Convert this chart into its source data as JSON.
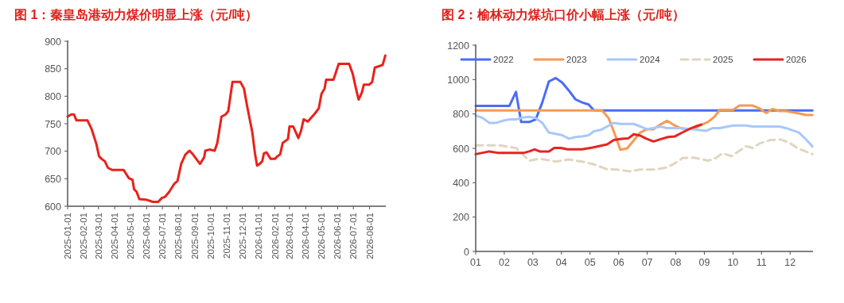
{
  "chart_data": [
    {
      "type": "line",
      "title": "图 1：秦皇岛港动力煤价明显上涨（元/吨）",
      "xlim": [
        "2025-01-01",
        "2026-09-01"
      ],
      "ylim": [
        600,
        900
      ],
      "yticks": [
        600,
        650,
        700,
        750,
        800,
        850,
        900
      ],
      "xticks": [
        "2025-01-01",
        "2025-02-01",
        "2025-03-01",
        "2025-04-01",
        "2025-05-01",
        "2025-06-01",
        "2025-07-01",
        "2025-08-01",
        "2025-09-01",
        "2025-10-01",
        "2025-11-01",
        "2025-12-01",
        "2026-01-01",
        "2026-02-01",
        "2026-03-01",
        "2026-04-01",
        "2026-05-01",
        "2026-06-01",
        "2026-07-01",
        "2026-08-01"
      ],
      "grid": false,
      "legend": false,
      "marker": "none",
      "series": [
        {
          "color": "#e8221b",
          "x": [
            "2025-01-01",
            "2025-01-08",
            "2025-01-13",
            "2025-01-18",
            "2025-02-08",
            "2025-02-16",
            "2025-02-25",
            "2025-03-02",
            "2025-03-07",
            "2025-03-13",
            "2025-03-19",
            "2025-03-27",
            "2025-04-18",
            "2025-04-28",
            "2025-05-05",
            "2025-05-08",
            "2025-05-13",
            "2025-05-18",
            "2025-05-31",
            "2025-06-13",
            "2025-06-23",
            "2025-06-30",
            "2025-07-06",
            "2025-07-14",
            "2025-07-24",
            "2025-07-30",
            "2025-08-06",
            "2025-08-14",
            "2025-08-22",
            "2025-08-27",
            "2025-09-11",
            "2025-09-19",
            "2025-09-21",
            "2025-09-29",
            "2025-10-09",
            "2025-10-14",
            "2025-10-22",
            "2025-10-30",
            "2025-11-04",
            "2025-11-12",
            "2025-11-27",
            "2025-12-04",
            "2025-12-10",
            "2025-12-20",
            "2025-12-25",
            "2025-12-29",
            "2026-01-03",
            "2026-01-08",
            "2026-01-11",
            "2026-01-16",
            "2026-01-24",
            "2026-02-01",
            "2026-02-06",
            "2026-02-11",
            "2026-02-16",
            "2026-02-26",
            "2026-03-01",
            "2026-03-08",
            "2026-03-18",
            "2026-03-23",
            "2026-03-28",
            "2026-04-05",
            "2026-04-18",
            "2026-04-26",
            "2026-05-01",
            "2026-05-07",
            "2026-05-10",
            "2026-05-24",
            "2026-06-03",
            "2026-06-23",
            "2026-06-30",
            "2026-07-06",
            "2026-07-11",
            "2026-07-17",
            "2026-07-21",
            "2026-07-31",
            "2026-08-06",
            "2026-08-11",
            "2026-08-26",
            "2026-08-31"
          ],
          "values": [
            763,
            767,
            767,
            756,
            756,
            740,
            713,
            691,
            686,
            682,
            670,
            666,
            666,
            651,
            648,
            631,
            626,
            613,
            612,
            608,
            608,
            615,
            617,
            626,
            641,
            646,
            677,
            694,
            701,
            696,
            677,
            689,
            701,
            703,
            701,
            715,
            763,
            767,
            773,
            826,
            826,
            814,
            782,
            734,
            696,
            674,
            677,
            682,
            696,
            698,
            686,
            686,
            691,
            694,
            715,
            722,
            745,
            745,
            724,
            737,
            758,
            754,
            768,
            778,
            804,
            814,
            830,
            830,
            859,
            859,
            840,
            814,
            794,
            806,
            821,
            821,
            826,
            852,
            857,
            874
          ]
        }
      ]
    },
    {
      "type": "line",
      "title": "图 2：榆林动力煤坑口价小幅上涨（元/吨）",
      "xlim": [
        1,
        12.8
      ],
      "ylim": [
        0,
        1200
      ],
      "yticks": [
        0,
        200,
        400,
        600,
        800,
        1000,
        1200
      ],
      "xticks": [
        {
          "value": 1,
          "label": "01"
        },
        {
          "value": 2,
          "label": "02"
        },
        {
          "value": 3,
          "label": "03"
        },
        {
          "value": 4,
          "label": "04"
        },
        {
          "value": 5,
          "label": "05"
        },
        {
          "value": 6,
          "label": "06"
        },
        {
          "value": 7,
          "label": "07"
        },
        {
          "value": 8,
          "label": "08"
        },
        {
          "value": 9,
          "label": "09"
        },
        {
          "value": 10,
          "label": "10"
        },
        {
          "value": 11,
          "label": "11"
        },
        {
          "value": 12,
          "label": "12"
        }
      ],
      "grid": false,
      "legend": "top",
      "marker": "none",
      "series": [
        {
          "name": "2022",
          "color": "#4a6cf7",
          "x": [
            1,
            2.18,
            2.41,
            2.59,
            2.87,
            3.1,
            3.33,
            3.56,
            3.8,
            4.03,
            4.26,
            4.49,
            4.72,
            4.95,
            5.14,
            12.78
          ],
          "values": [
            847,
            847,
            928,
            753,
            753,
            768,
            867,
            989,
            1009,
            982,
            936,
            885,
            867,
            855,
            820,
            820
          ]
        },
        {
          "name": "2023",
          "color": "#f79a52",
          "x": [
            1,
            5.42,
            5.65,
            5.88,
            6.06,
            6.3,
            6.53,
            6.76,
            6.99,
            7.22,
            7.45,
            7.69,
            7.92,
            8.15,
            8.38,
            8.61,
            8.89,
            9.12,
            9.35,
            9.54,
            10,
            10.23,
            10.69,
            10.93,
            11.16,
            11.39,
            11.62,
            11.85,
            12.31,
            12.55,
            12.78
          ],
          "values": [
            820,
            820,
            776,
            676,
            592,
            600,
            646,
            692,
            711,
            711,
            737,
            760,
            737,
            718,
            711,
            714,
            737,
            753,
            783,
            824,
            824,
            849,
            849,
            832,
            806,
            829,
            817,
            817,
            803,
            794,
            794
          ]
        },
        {
          "name": "2024",
          "color": "#a8c8f8",
          "x": [
            1,
            1.25,
            1.48,
            1.71,
            1.94,
            2.18,
            2.41,
            2.64,
            2.87,
            3.1,
            3.33,
            3.56,
            3.8,
            4.03,
            4.26,
            4.49,
            4.72,
            4.95,
            5.14,
            5.37,
            5.6,
            5.83,
            6.06,
            6.53,
            6.76,
            6.99,
            7.22,
            7.45,
            7.69,
            8.15,
            8.61,
            9.07,
            9.3,
            9.54,
            10,
            10.46,
            10.69,
            11.62,
            11.85,
            12.31,
            12.55,
            12.78
          ],
          "values": [
            791,
            776,
            748,
            748,
            760,
            768,
            768,
            779,
            783,
            776,
            748,
            692,
            684,
            676,
            656,
            666,
            669,
            676,
            699,
            707,
            727,
            748,
            742,
            742,
            727,
            711,
            718,
            727,
            718,
            718,
            711,
            702,
            718,
            718,
            733,
            733,
            727,
            727,
            718,
            692,
            653,
            611
          ]
        },
        {
          "name": "2025",
          "color": "#e0d6c0",
          "line_style": "dashed",
          "x": [
            1,
            1.85,
            2.41,
            2.64,
            2.87,
            3.24,
            3.8,
            4.26,
            4.72,
            5.09,
            5.6,
            5.93,
            6.39,
            6.76,
            7.31,
            7.69,
            7.96,
            8.24,
            8.61,
            8.89,
            9.12,
            9.4,
            9.63,
            9.95,
            10.19,
            10.46,
            10.69,
            10.93,
            11.3,
            11.67,
            11.94,
            12.31,
            12.78
          ],
          "values": [
            617,
            617,
            602,
            566,
            528,
            540,
            523,
            535,
            523,
            509,
            478,
            477,
            466,
            477,
            477,
            489,
            512,
            543,
            546,
            538,
            528,
            543,
            571,
            555,
            582,
            612,
            602,
            628,
            648,
            651,
            635,
            597,
            566
          ]
        },
        {
          "name": "2026",
          "color": "#e52420",
          "x": [
            1,
            1.48,
            1.76,
            2.69,
            2.87,
            3.06,
            3.24,
            3.56,
            3.75,
            3.98,
            4.21,
            4.72,
            5.09,
            5.6,
            5.83,
            6.11,
            6.34,
            6.53,
            6.76,
            6.94,
            7.22,
            7.5,
            7.73,
            7.96,
            8.19,
            8.47,
            8.7,
            8.89
          ],
          "values": [
            566,
            582,
            574,
            574,
            582,
            594,
            582,
            582,
            602,
            602,
            594,
            594,
            605,
            623,
            648,
            655,
            658,
            682,
            674,
            658,
            640,
            655,
            666,
            669,
            689,
            712,
            728,
            738
          ]
        }
      ]
    }
  ]
}
